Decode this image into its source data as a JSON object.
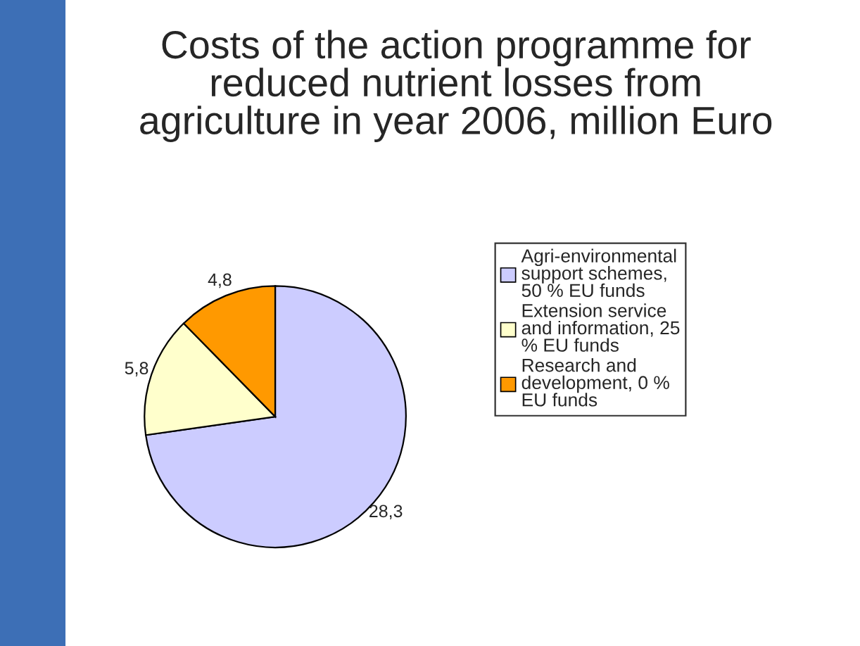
{
  "chart_data": {
    "type": "pie",
    "title": "Costs of the action programme for\nreduced nutrient losses from\nagriculture in year 2006, million Euro",
    "categories": [
      "Agri-environmental\nsupport schemes,\n50 % EU funds",
      "Extension service\nand information, 25\n% EU funds",
      "Research and\ndevelopment, 0 %\nEU funds"
    ],
    "values": [
      28.3,
      5.8,
      4.8
    ],
    "value_labels": [
      "28,3",
      "5,8",
      "4,8"
    ],
    "colors": [
      "#ccccff",
      "#ffffcc",
      "#ff9900"
    ],
    "legend": "right"
  }
}
